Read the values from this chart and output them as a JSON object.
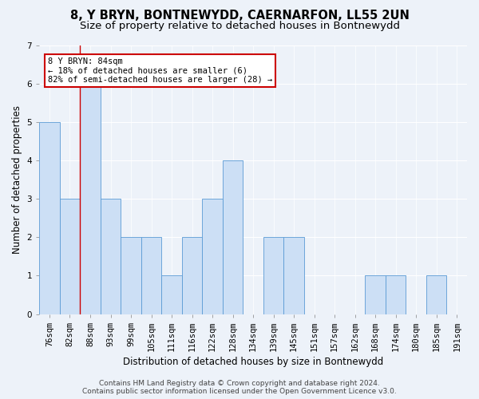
{
  "title": "8, Y BRYN, BONTNEWYDD, CAERNARFON, LL55 2UN",
  "subtitle": "Size of property relative to detached houses in Bontnewydd",
  "xlabel": "Distribution of detached houses by size in Bontnewydd",
  "ylabel": "Number of detached properties",
  "categories": [
    "76sqm",
    "82sqm",
    "88sqm",
    "93sqm",
    "99sqm",
    "105sqm",
    "111sqm",
    "116sqm",
    "122sqm",
    "128sqm",
    "134sqm",
    "139sqm",
    "145sqm",
    "151sqm",
    "157sqm",
    "162sqm",
    "168sqm",
    "174sqm",
    "180sqm",
    "185sqm",
    "191sqm"
  ],
  "values": [
    5,
    3,
    6,
    3,
    2,
    2,
    1,
    2,
    3,
    4,
    0,
    2,
    2,
    0,
    0,
    0,
    1,
    1,
    0,
    1,
    0
  ],
  "bar_color": "#ccdff5",
  "bar_edge_color": "#5b9bd5",
  "red_line_x": 1.5,
  "ylim": [
    0,
    7
  ],
  "yticks": [
    0,
    1,
    2,
    3,
    4,
    5,
    6,
    7
  ],
  "annotation_text": "8 Y BRYN: 84sqm\n← 18% of detached houses are smaller (6)\n82% of semi-detached houses are larger (28) →",
  "annotation_box_facecolor": "#ffffff",
  "annotation_box_edgecolor": "#cc0000",
  "footer_line1": "Contains HM Land Registry data © Crown copyright and database right 2024.",
  "footer_line2": "Contains public sector information licensed under the Open Government Licence v3.0.",
  "background_color": "#edf2f9",
  "grid_color": "#ffffff",
  "title_fontsize": 10.5,
  "subtitle_fontsize": 9.5,
  "axis_label_fontsize": 8.5,
  "tick_fontsize": 7.5,
  "footer_fontsize": 6.5
}
